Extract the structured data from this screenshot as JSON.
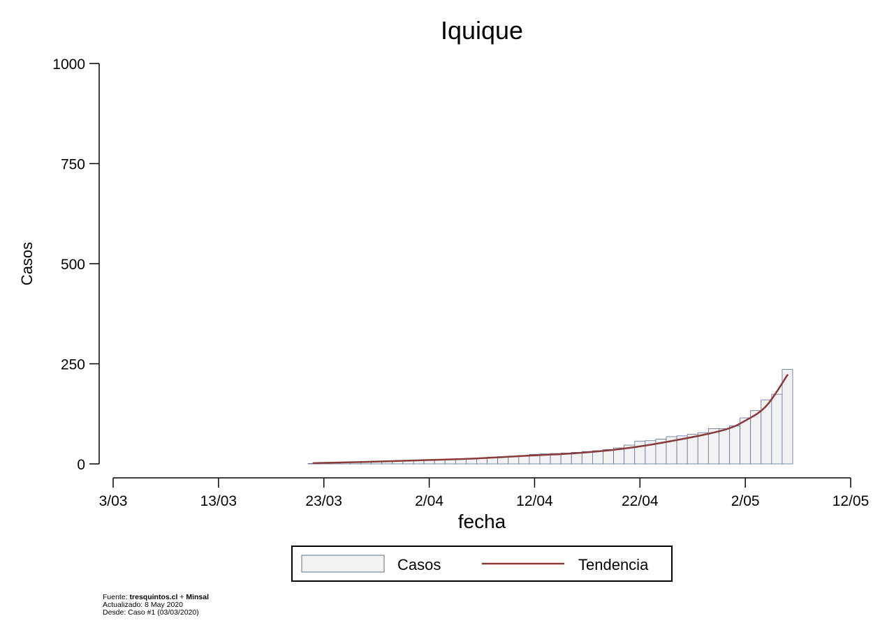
{
  "chart_data": {
    "type": "bar",
    "title": "Iquique",
    "xlabel": "fecha",
    "ylabel": "Casos",
    "x_ticks": [
      "3/03",
      "13/03",
      "23/03",
      "2/04",
      "12/04",
      "22/04",
      "2/05",
      "12/05"
    ],
    "y_ticks": [
      "0",
      "250",
      "500",
      "750",
      "1000"
    ],
    "ylim": [
      0,
      1000
    ],
    "xlim": [
      "2020-03-03",
      "2020-05-12"
    ],
    "grid": false,
    "legend_position": "bottom",
    "series": [
      {
        "name": "Casos",
        "type": "bar",
        "color": "#f2f2f2",
        "edge_color": "#5d6f93",
        "dates": [
          "2020-03-22",
          "2020-03-23",
          "2020-03-24",
          "2020-03-25",
          "2020-03-26",
          "2020-03-27",
          "2020-03-28",
          "2020-03-29",
          "2020-03-30",
          "2020-03-31",
          "2020-04-01",
          "2020-04-02",
          "2020-04-03",
          "2020-04-04",
          "2020-04-05",
          "2020-04-06",
          "2020-04-07",
          "2020-04-08",
          "2020-04-09",
          "2020-04-10",
          "2020-04-11",
          "2020-04-12",
          "2020-04-13",
          "2020-04-14",
          "2020-04-15",
          "2020-04-16",
          "2020-04-17",
          "2020-04-18",
          "2020-04-19",
          "2020-04-20",
          "2020-04-21",
          "2020-04-22",
          "2020-04-23",
          "2020-04-24",
          "2020-04-25",
          "2020-04-26",
          "2020-04-27",
          "2020-04-28",
          "2020-04-29",
          "2020-04-30",
          "2020-05-01",
          "2020-05-02",
          "2020-05-03",
          "2020-05-04",
          "2020-05-05",
          "2020-05-06",
          "2020-05-07",
          "2020-05-08"
        ],
        "values": [
          1,
          2,
          3,
          4,
          5,
          6,
          7,
          7,
          8,
          8,
          9,
          10,
          11,
          12,
          13,
          14,
          15,
          17,
          18,
          19,
          21,
          24,
          25,
          26,
          27,
          29,
          31,
          33,
          36,
          40,
          47,
          57,
          58,
          62,
          68,
          70,
          74,
          78,
          88,
          88,
          95,
          115,
          133,
          160,
          174,
          236,
          0,
          0
        ]
      },
      {
        "name": "Tendencia",
        "type": "line",
        "color": "#8b3a3a",
        "dates": [
          "2020-03-22",
          "2020-03-27",
          "2020-04-01",
          "2020-04-06",
          "2020-04-11",
          "2020-04-16",
          "2020-04-21",
          "2020-04-26",
          "2020-04-30",
          "2020-05-02",
          "2020-05-04",
          "2020-05-06"
        ],
        "values": [
          2,
          5,
          9,
          13,
          20,
          27,
          40,
          62,
          85,
          108,
          145,
          222
        ]
      }
    ]
  },
  "legend": {
    "casos": "Casos",
    "tendencia": "Tendencia"
  },
  "footer": {
    "source_prefix": "Fuente: ",
    "source_site": "tresquintos.cl",
    "source_sep": " + ",
    "source_org": "Minsal",
    "updated": "Actualizado: 8 May 2020",
    "since": "Desde: Caso #1  (03/03/2020)"
  }
}
